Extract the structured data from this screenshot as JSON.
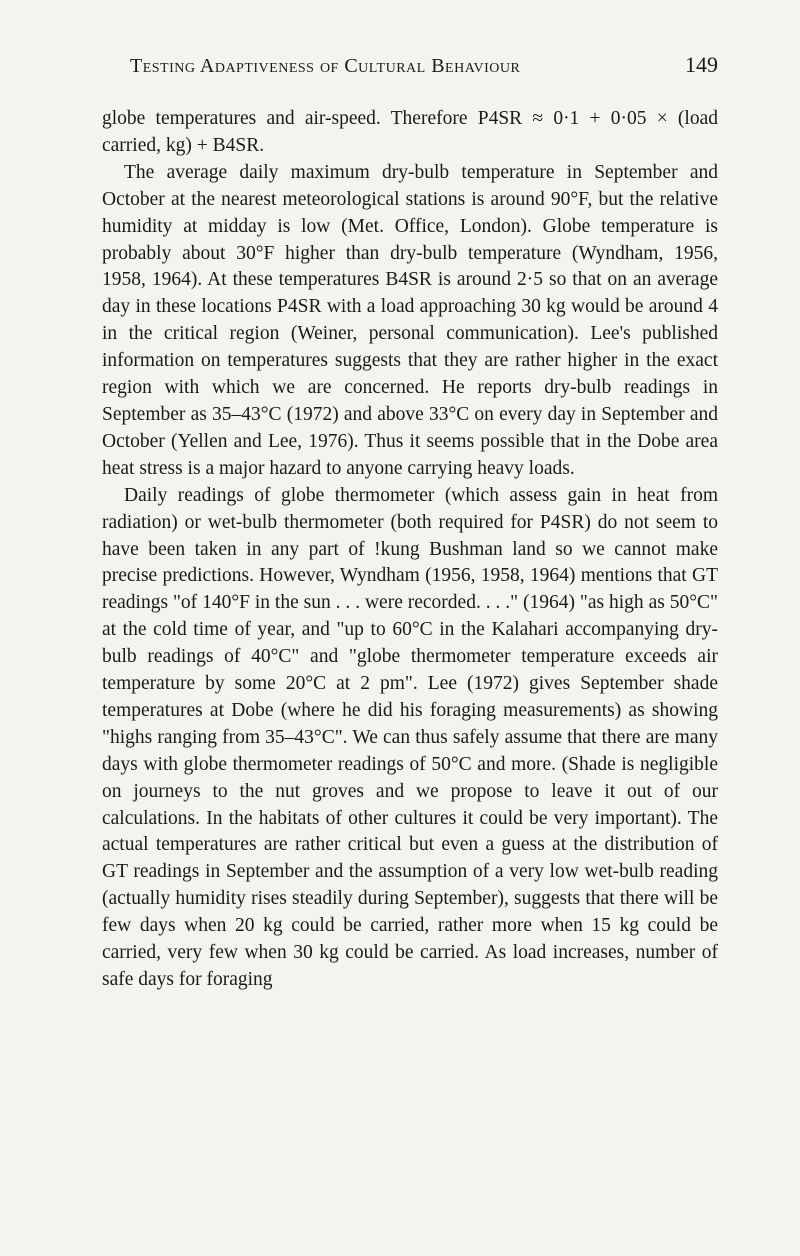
{
  "header": {
    "title": "Testing Adaptiveness of Cultural Behaviour",
    "page_number": "149"
  },
  "paragraphs": {
    "p1": "globe temperatures and air-speed. Therefore P4SR ≈ 0·1 + 0·05 × (load carried, kg) + B4SR.",
    "p2": "The average daily maximum dry-bulb temperature in September and October at the nearest meteorological stations is around 90°F, but the relative humidity at midday is low (Met. Office, London). Globe temperature is probably about 30°F higher than dry-bulb temperature (Wyndham, 1956, 1958, 1964). At these temperatures B4SR is around 2·5 so that on an average day in these locations P4SR with a load approaching 30 kg would be around 4 in the critical region (Weiner, personal communication). Lee's published information on temperatures suggests that they are rather higher in the exact region with which we are concerned. He reports dry-bulb readings in September as 35–43°C (1972) and above 33°C on every day in September and October (Yellen and Lee, 1976). Thus it seems possible that in the Dobe area heat stress is a major hazard to anyone carrying heavy loads.",
    "p3": "Daily readings of globe thermometer (which assess gain in heat from radiation) or wet-bulb thermometer (both required for P4SR) do not seem to have been taken in any part of !kung Bushman land so we cannot make precise predictions. However, Wyndham (1956, 1958, 1964) mentions that GT readings \"of 140°F in the sun . . . were recorded. . . .\" (1964) \"as high as 50°C\" at the cold time of year, and \"up to 60°C in the Kalahari accompanying dry-bulb readings of 40°C\" and \"globe thermometer temperature exceeds air temperature by some 20°C at 2 pm\". Lee (1972) gives September shade temperatures at Dobe (where he did his foraging measurements) as showing \"highs ranging from 35–43°C\". We can thus safely assume that there are many days with globe thermometer readings of 50°C and more. (Shade is negligible on journeys to the nut groves and we propose to leave it out of our calculations. In the habitats of other cultures it could be very important). The actual temperatures are rather critical but even a guess at the distribution of GT readings in September and the assumption of a very low wet-bulb reading (actually humidity rises steadily during September), suggests that there will be few days when 20 kg could be carried, rather more when 15 kg could be carried, very few when 30 kg could be carried. As load increases, number of safe days for foraging"
  },
  "styling": {
    "background_color": "#f5f3ed",
    "text_color": "#1a1a1a",
    "font_family": "Georgia, Times New Roman, serif",
    "body_font_size": 19.5,
    "line_height": 1.38,
    "header_font_size": 20,
    "page_number_font_size": 22
  }
}
